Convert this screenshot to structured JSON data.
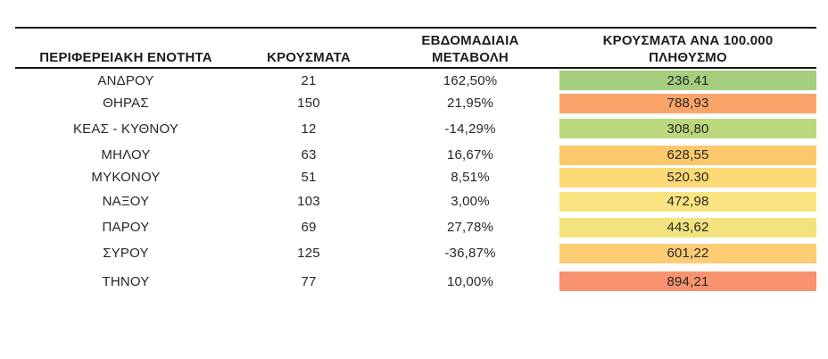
{
  "table": {
    "headers": {
      "region": "ΠΕΡΙΦΕΡΕΙΑΚΗ ΕΝΟΤΗΤΑ",
      "cases": "ΚΡΟΥΣΜΑΤΑ",
      "weekly_change_line1": "ΕΒΔΟΜΑΔΙΑΙΑ",
      "weekly_change_line2": "ΜΕΤΑΒΟΛΗ",
      "per_100k_line1": "ΚΡΟΥΣΜΑΤΑ ΑΝΑ 100.000",
      "per_100k_line2": "ΠΛΗΘΥΣΜΟ"
    },
    "rows": [
      {
        "region": "ΑΝΔΡΟΥ",
        "cases": "21",
        "weekly_change": "162,50%",
        "per_100k": "236.41",
        "color": "#a5ce7e"
      },
      {
        "region": "ΘΗΡΑΣ",
        "cases": "150",
        "weekly_change": "21,95%",
        "per_100k": "788,93",
        "color": "#f9a569"
      },
      {
        "region": "ΚΕΑΣ - ΚΥΘΝΟΥ",
        "cases": "12",
        "weekly_change": "-14,29%",
        "per_100k": "308,80",
        "color": "#bcd87e"
      },
      {
        "region": "ΜΗΛΟΥ",
        "cases": "63",
        "weekly_change": "16,67%",
        "per_100k": "628,55",
        "color": "#fbc96c"
      },
      {
        "region": "ΜΥΚΟΝΟΥ",
        "cases": "51",
        "weekly_change": "8,51%",
        "per_100k": "520.30",
        "color": "#fcd877"
      },
      {
        "region": "ΝΑΞΟΥ",
        "cases": "103",
        "weekly_change": "3,00%",
        "per_100k": "472,98",
        "color": "#fae482"
      },
      {
        "region": "ΠΑΡΟΥ",
        "cases": "69",
        "weekly_change": "27,78%",
        "per_100k": "443,62",
        "color": "#f2e37e"
      },
      {
        "region": "ΣΥΡΟΥ",
        "cases": "125",
        "weekly_change": "-36,87%",
        "per_100k": "601,22",
        "color": "#fccd75"
      },
      {
        "region": "ΤΗΝΟΥ",
        "cases": "77",
        "weekly_change": "10,00%",
        "per_100k": "894,21",
        "color": "#f9936f"
      }
    ]
  },
  "colors": {
    "border": "#141414",
    "text": "#262626",
    "background": "#ffffff",
    "scale_good": "#a5ce7e",
    "scale_mid": "#fae482",
    "scale_bad": "#f9936f"
  },
  "chart_data": {
    "type": "table",
    "title": "",
    "columns": [
      "ΠΕΡΙΦΕΡΕΙΑΚΗ ΕΝΟΤΗΤΑ",
      "ΚΡΟΥΣΜΑΤΑ",
      "ΕΒΔΟΜΑΔΙΑΙΑ ΜΕΤΑΒΟΛΗ",
      "ΚΡΟΥΣΜΑΤΑ ΑΝΑ 100.000 ΠΛΗΘΥΣΜΟ"
    ],
    "rows": [
      [
        "ΑΝΔΡΟΥ",
        21,
        "162,50%",
        "236.41"
      ],
      [
        "ΘΗΡΑΣ",
        150,
        "21,95%",
        "788,93"
      ],
      [
        "ΚΕΑΣ - ΚΥΘΝΟΥ",
        12,
        "-14,29%",
        "308,80"
      ],
      [
        "ΜΗΛΟΥ",
        63,
        "16,67%",
        "628,55"
      ],
      [
        "ΜΥΚΟΝΟΥ",
        51,
        "8,51%",
        "520.30"
      ],
      [
        "ΝΑΞΟΥ",
        103,
        "3,00%",
        "472,98"
      ],
      [
        "ΠΑΡΟΥ",
        69,
        "27,78%",
        "443,62"
      ],
      [
        "ΣΥΡΟΥ",
        125,
        "-36,87%",
        "601,22"
      ],
      [
        "ΤΗΝΟΥ",
        77,
        "10,00%",
        "894,21"
      ]
    ],
    "layout_hints": {
      "last_column_conditional_color_scale": "green (low) -> yellow -> orange/red (high)",
      "decimal_separator": "comma (two values shown with period: 236.41, 520.30)",
      "text_alignment": "all columns centered"
    }
  }
}
